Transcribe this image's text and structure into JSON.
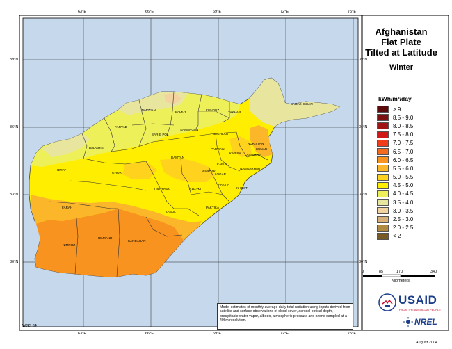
{
  "title": {
    "line1": "Afghanistan",
    "line2": "Flat Plate",
    "line3": "Tilted at Latitude",
    "season": "Winter"
  },
  "legend": {
    "title": "kWh/m²/day",
    "items": [
      {
        "label": "> 9",
        "color": "#5a0a0a"
      },
      {
        "label": "8.5 - 9.0",
        "color": "#7a1010"
      },
      {
        "label": "8.0 - 8.5",
        "color": "#a01414"
      },
      {
        "label": "7.5 - 8.0",
        "color": "#d01818"
      },
      {
        "label": "7.0 - 7.5",
        "color": "#f03c18"
      },
      {
        "label": "6.5 - 7.0",
        "color": "#f46a1e"
      },
      {
        "label": "6.0 - 6.5",
        "color": "#f7931e"
      },
      {
        "label": "5.5 - 6.0",
        "color": "#fbb62a"
      },
      {
        "label": "5.0 - 5.5",
        "color": "#ffd21e"
      },
      {
        "label": "4.5 - 5.0",
        "color": "#ffee00"
      },
      {
        "label": "4.0 - 4.5",
        "color": "#eef05a"
      },
      {
        "label": "3.5 - 4.0",
        "color": "#e8e69e"
      },
      {
        "label": "3.0 - 3.5",
        "color": "#f3d3a0"
      },
      {
        "label": "2.5 - 3.0",
        "color": "#d7b07a"
      },
      {
        "label": "2.0 - 2.5",
        "color": "#b08a40"
      },
      {
        "label": "< 2",
        "color": "#7a5a24"
      }
    ]
  },
  "axes": {
    "longitude_labels": [
      "63°E",
      "66°E",
      "69°E",
      "72°E",
      "75°E"
    ],
    "latitude_labels": [
      "39°N",
      "36°N",
      "33°N",
      "30°N"
    ]
  },
  "scale_bar": {
    "ticks": [
      "0",
      "85",
      "170",
      "340"
    ],
    "unit": "Kilometers"
  },
  "provinces": [
    "BADAKHSHAN",
    "JAWZJAN",
    "BALKH",
    "KUNDUZ",
    "TAKHAR",
    "FARYAB",
    "SAR-E POL",
    "SAMANGAN",
    "BAGHLAN",
    "BADGHIS",
    "BAMYAN",
    "PARWAN",
    "KAPISA",
    "LAGHMAN",
    "KUNAR",
    "NURISTAN",
    "HERAT",
    "GHOR",
    "WARDAK",
    "KABUL",
    "NANGARHAR",
    "URUZGAN",
    "GHAZNI",
    "LOGAR",
    "PAKTIA",
    "KHOST",
    "FARAH",
    "ZABUL",
    "PAKTIKA",
    "NIMROZ",
    "HELMAND",
    "KANDAHAR"
  ],
  "note": "Model estimates of monthly average daily total radiation using inputs derived from satellite and surface observations of cloud cover, aerosol optical depth, precipitable water vapor, albedo, atmospheric pressure and ozone sampled at a 40km resolution.",
  "logos": {
    "usaid_text": "USAID",
    "usaid_tagline": "FROM THE AMERICAN PEOPLE",
    "nrel_text": "NREL"
  },
  "projection": "WGS 84",
  "date": "August 2004"
}
